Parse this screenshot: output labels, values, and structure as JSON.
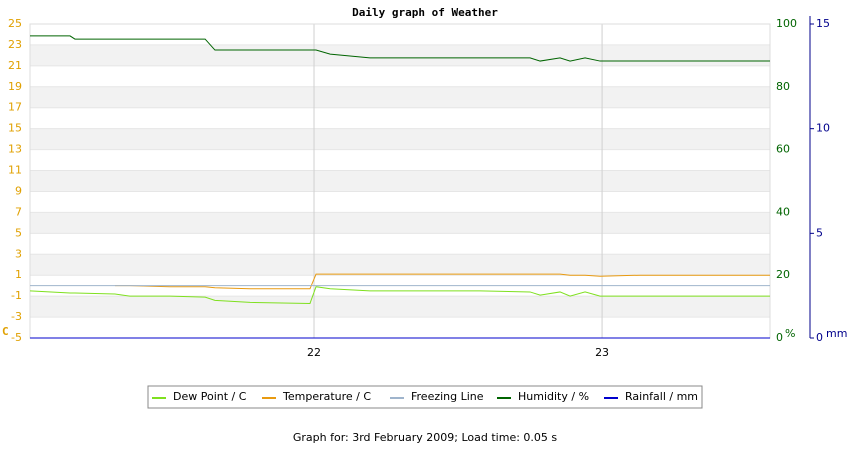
{
  "chart_data": {
    "type": "line",
    "title": "Daily graph of Weather",
    "caption": "Graph for: 3rd February 2009; Load time: 0.05 s",
    "y_label": "C",
    "y2_label": "%",
    "y3_label": "mm",
    "y_color": "#e0a000",
    "y2_color": "#006400",
    "y3_color": "#00008b",
    "x": [
      21.014,
      21.153,
      21.17,
      21.309,
      21.361,
      21.5,
      21.622,
      21.656,
      21.778,
      21.986,
      22.007,
      22.056,
      22.194,
      22.576,
      22.75,
      22.785,
      22.854,
      22.889,
      22.941,
      22.993,
      23.132,
      23.583
    ],
    "xlim": [
      21.014,
      23.583
    ],
    "xticks": [
      22,
      23
    ],
    "ylim": [
      -5,
      25
    ],
    "yticks": [
      -5,
      -3,
      -1,
      1,
      3,
      5,
      7,
      9,
      11,
      13,
      15,
      17,
      19,
      21,
      23,
      25
    ],
    "y2lim": [
      0,
      100
    ],
    "y2ticks": [
      0,
      20,
      40,
      60,
      80,
      100
    ],
    "y3lim": [
      0,
      15
    ],
    "y3ticks": [
      0,
      5,
      10,
      15
    ],
    "grid": true,
    "legend_position": "bottom",
    "series": [
      {
        "name": "Dew Point / C",
        "color": "#7fe01f",
        "axis": "y",
        "values": [
          -0.5,
          -0.7,
          -0.7,
          -0.8,
          -1.0,
          -1.0,
          -1.1,
          -1.4,
          -1.6,
          -1.7,
          -0.1,
          -0.3,
          -0.5,
          -0.5,
          -0.6,
          -0.9,
          -0.6,
          -1.0,
          -0.6,
          -1.0,
          -1.0,
          -1.0
        ]
      },
      {
        "name": "Temperature / C",
        "color": "#e89a10",
        "axis": "y",
        "values": [
          null,
          null,
          null,
          0.0,
          0.0,
          -0.1,
          -0.1,
          -0.2,
          -0.3,
          -0.3,
          1.1,
          1.1,
          1.1,
          1.1,
          1.1,
          1.1,
          1.1,
          1.0,
          1.0,
          0.9,
          1.0,
          1.0
        ]
      },
      {
        "name": "Freezing Line",
        "color": "#9fb4cc",
        "axis": "y",
        "values": [
          0,
          0,
          0,
          0,
          0,
          0,
          0,
          0,
          0,
          0,
          0,
          0,
          0,
          0,
          0,
          0,
          0,
          0,
          0,
          0,
          0,
          0
        ]
      },
      {
        "name": "Humidity / %",
        "color": "#006400",
        "axis": "y2",
        "values": [
          96.2,
          96.2,
          95.2,
          95.2,
          95.2,
          95.2,
          95.2,
          91.7,
          91.7,
          91.7,
          91.7,
          90.4,
          89.2,
          89.2,
          89.2,
          88.2,
          89.2,
          88.2,
          89.2,
          88.2,
          88.2,
          88.2
        ]
      },
      {
        "name": "Rainfall / mm",
        "color": "#0000cc",
        "axis": "y3",
        "values": [
          0,
          0,
          0,
          0,
          0,
          0,
          0,
          0,
          0,
          0,
          0,
          0,
          0,
          0,
          0,
          0,
          0,
          0,
          0,
          0,
          0,
          0
        ]
      }
    ]
  }
}
